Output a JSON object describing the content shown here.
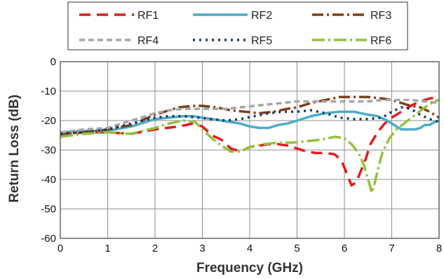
{
  "chart_data": {
    "type": "line",
    "title": "",
    "xlabel": "Frequency (GHz)",
    "ylabel": "Return Loss (dB)",
    "xlim": [
      0,
      8
    ],
    "ylim": [
      -60,
      0
    ],
    "xticks": [
      "0",
      "1",
      "2",
      "3",
      "4",
      "5",
      "6",
      "7",
      "8"
    ],
    "yticks": [
      "0",
      "-10",
      "-20",
      "-30",
      "-40",
      "-50",
      "-60"
    ],
    "grid": true,
    "legend_position": "top",
    "series": [
      {
        "name": "RF1",
        "color": "#e31a1c",
        "dash": "16,9",
        "width": 3.5,
        "x": [
          0,
          0.5,
          1,
          1.5,
          2,
          2.5,
          2.8,
          3.0,
          3.2,
          3.4,
          3.6,
          3.8,
          4.0,
          4.2,
          4.4,
          4.6,
          4.8,
          5.0,
          5.2,
          5.4,
          5.6,
          5.8,
          5.95,
          6.05,
          6.15,
          6.25,
          6.35,
          6.45,
          6.55,
          6.7,
          6.85,
          7.0,
          7.2,
          7.4,
          7.6,
          7.8,
          8.0
        ],
        "y": [
          -25,
          -24,
          -24,
          -24.5,
          -23,
          -22,
          -21,
          -22,
          -25,
          -26.5,
          -29.5,
          -30.5,
          -29,
          -28.5,
          -28,
          -28,
          -28.5,
          -29.5,
          -30.5,
          -31,
          -31,
          -31.5,
          -34,
          -38,
          -42,
          -41,
          -37,
          -33,
          -28,
          -24,
          -21,
          -19,
          -17,
          -15,
          -13.5,
          -12.5,
          -12
        ]
      },
      {
        "name": "RF2",
        "color": "#4bacc6",
        "dash": "",
        "width": 3.5,
        "x": [
          0,
          0.5,
          1,
          1.5,
          2,
          2.3,
          2.6,
          2.8,
          3.0,
          3.2,
          3.4,
          3.6,
          3.8,
          4.0,
          4.2,
          4.4,
          4.6,
          4.8,
          5.0,
          5.3,
          5.6,
          5.9,
          6.2,
          6.5,
          6.7,
          6.9,
          7.05,
          7.2,
          7.4,
          7.5,
          7.6,
          7.7,
          7.8,
          7.9,
          8.0
        ],
        "y": [
          -24,
          -23.5,
          -23.5,
          -22,
          -19.5,
          -19,
          -18.5,
          -18.5,
          -19,
          -19.5,
          -20,
          -20.5,
          -21,
          -22,
          -22.5,
          -22.5,
          -21.5,
          -21,
          -20,
          -18.5,
          -17.5,
          -17,
          -17,
          -18,
          -18.5,
          -20,
          -21.5,
          -23,
          -23,
          -23,
          -22.5,
          -21.5,
          -21.5,
          -20.5,
          -20
        ]
      },
      {
        "name": "RF3",
        "color": "#7f3f1a",
        "dash": "16,5,3,5",
        "width": 3.5,
        "x": [
          0,
          0.5,
          1,
          1.5,
          2,
          2.3,
          2.5,
          2.8,
          3.0,
          3.3,
          3.6,
          3.9,
          4.2,
          4.5,
          4.8,
          5.0,
          5.3,
          5.6,
          5.9,
          6.2,
          6.5,
          6.8,
          7.0,
          7.2,
          7.4,
          7.6,
          7.8,
          8.0
        ],
        "y": [
          -24.5,
          -24,
          -23,
          -21.5,
          -18,
          -16.5,
          -15.5,
          -15,
          -15,
          -15.5,
          -16.5,
          -17,
          -17.5,
          -17,
          -16,
          -15.5,
          -14,
          -13,
          -12,
          -12,
          -12,
          -12.5,
          -13,
          -14,
          -15,
          -15.5,
          -17,
          -19
        ]
      },
      {
        "name": "RF4",
        "color": "#a6a6a6",
        "dash": "8,5",
        "width": 3.5,
        "x": [
          0,
          0.5,
          1,
          1.5,
          2,
          2.3,
          2.6,
          2.9,
          3.2,
          3.5,
          3.8,
          4.1,
          4.4,
          4.7,
          5.0,
          5.3,
          5.6,
          5.9,
          6.2,
          6.5,
          6.8,
          7.1,
          7.4,
          7.7,
          8.0
        ],
        "y": [
          -24,
          -23,
          -22.5,
          -20,
          -17.5,
          -16.5,
          -16,
          -16,
          -16,
          -16,
          -15.5,
          -15,
          -14.5,
          -14,
          -13.5,
          -13.5,
          -13.5,
          -13.5,
          -13.5,
          -13.5,
          -13,
          -13,
          -13,
          -13.5,
          -14
        ]
      },
      {
        "name": "RF5",
        "color": "#1f3864",
        "dash": "3,6",
        "width": 3.5,
        "x": [
          0,
          0.5,
          1,
          1.5,
          2,
          2.3,
          2.6,
          2.9,
          3.2,
          3.5,
          3.8,
          4.1,
          4.4,
          4.7,
          5.0,
          5.3,
          5.6,
          5.9,
          6.2,
          6.5,
          6.8,
          7.0,
          7.2,
          7.4,
          7.6,
          7.8,
          8.0
        ],
        "y": [
          -24.5,
          -24,
          -23,
          -21,
          -19,
          -18.5,
          -18.5,
          -19,
          -19.5,
          -20,
          -19.5,
          -18.5,
          -17.5,
          -17,
          -17,
          -16.5,
          -17.5,
          -19,
          -19.5,
          -19.5,
          -19,
          -17,
          -15.5,
          -16,
          -18,
          -19.5,
          -20.5
        ]
      },
      {
        "name": "RF6",
        "color": "#92c13f",
        "dash": "18,5,3,5",
        "width": 3.5,
        "x": [
          0,
          0.5,
          1,
          1.5,
          2,
          2.3,
          2.6,
          2.85,
          3.0,
          3.2,
          3.4,
          3.6,
          3.8,
          4.0,
          4.3,
          4.6,
          4.9,
          5.2,
          5.5,
          5.8,
          6.0,
          6.15,
          6.3,
          6.42,
          6.52,
          6.58,
          6.63,
          6.7,
          6.8,
          6.95,
          7.1,
          7.3,
          7.5,
          7.7,
          7.9,
          8.0
        ],
        "y": [
          -25.5,
          -24.5,
          -24,
          -24.5,
          -22.5,
          -21,
          -20,
          -20.5,
          -23,
          -26,
          -28.5,
          -30.5,
          -30.5,
          -29,
          -28,
          -27.5,
          -27.5,
          -27,
          -26.5,
          -25.5,
          -26,
          -28,
          -31,
          -35.5,
          -41,
          -44.5,
          -42,
          -37,
          -31,
          -26,
          -23,
          -20.5,
          -18,
          -15.5,
          -13.5,
          -13
        ]
      }
    ]
  }
}
